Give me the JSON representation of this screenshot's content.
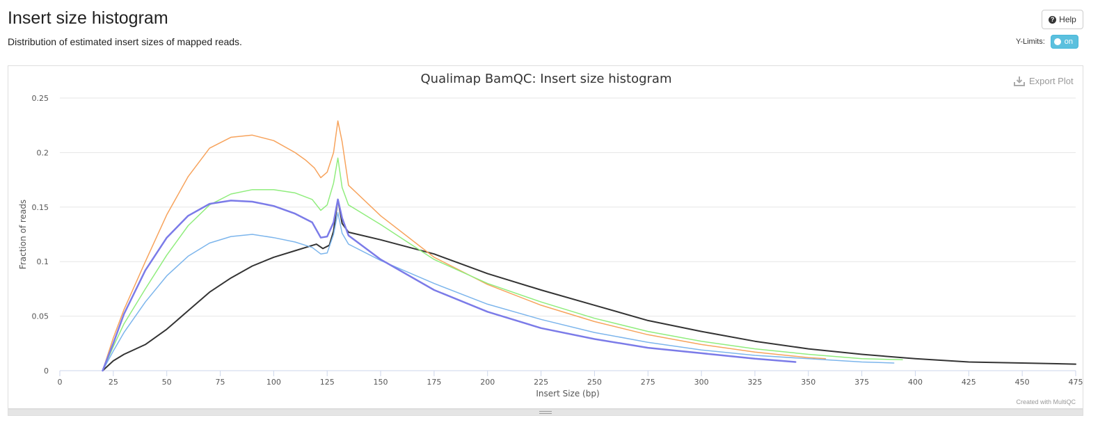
{
  "header": {
    "title": "Insert size histogram",
    "description": "Distribution of estimated insert sizes of mapped reads.",
    "help_label": "Help",
    "ylimits_label": "Y-Limits:",
    "ylimits_toggle": "on",
    "toggle_color": "#5bc0de"
  },
  "plot": {
    "export_label": "Export Plot",
    "credit": "Created with MultiQC"
  },
  "chart_data": {
    "type": "line",
    "title": "Qualimap BamQC: Insert size histogram",
    "xlabel": "Insert Size (bp)",
    "ylabel": "Fraction of reads",
    "xlim": [
      0,
      475
    ],
    "ylim": [
      0,
      0.25
    ],
    "xticks": [
      "0",
      "25",
      "50",
      "75",
      "100",
      "125",
      "150",
      "175",
      "200",
      "225",
      "250",
      "275",
      "300",
      "325",
      "350",
      "375",
      "400",
      "425",
      "450",
      "475"
    ],
    "yticks": [
      "0",
      "0.05",
      "0.1",
      "0.15",
      "0.2",
      "0.25"
    ],
    "grid": true,
    "series": [
      {
        "color": "#333333",
        "width": 2,
        "points": [
          [
            20,
            0
          ],
          [
            25,
            0.009
          ],
          [
            30,
            0.015
          ],
          [
            40,
            0.024
          ],
          [
            50,
            0.038
          ],
          [
            60,
            0.055
          ],
          [
            70,
            0.072
          ],
          [
            80,
            0.085
          ],
          [
            90,
            0.096
          ],
          [
            100,
            0.104
          ],
          [
            110,
            0.11
          ],
          [
            120,
            0.116
          ],
          [
            123,
            0.112
          ],
          [
            126,
            0.115
          ],
          [
            128,
            0.128
          ],
          [
            130,
            0.157
          ],
          [
            132,
            0.135
          ],
          [
            135,
            0.127
          ],
          [
            150,
            0.12
          ],
          [
            175,
            0.107
          ],
          [
            200,
            0.089
          ],
          [
            225,
            0.074
          ],
          [
            250,
            0.06
          ],
          [
            275,
            0.046
          ],
          [
            300,
            0.036
          ],
          [
            325,
            0.027
          ],
          [
            350,
            0.02
          ],
          [
            375,
            0.015
          ],
          [
            400,
            0.011
          ],
          [
            425,
            0.008
          ],
          [
            450,
            0.007
          ],
          [
            475,
            0.006
          ]
        ]
      },
      {
        "color": "#f7a35c",
        "width": 1.5,
        "points": [
          [
            20,
            0
          ],
          [
            25,
            0.03
          ],
          [
            30,
            0.056
          ],
          [
            40,
            0.1
          ],
          [
            50,
            0.143
          ],
          [
            60,
            0.178
          ],
          [
            70,
            0.204
          ],
          [
            80,
            0.214
          ],
          [
            90,
            0.216
          ],
          [
            100,
            0.211
          ],
          [
            110,
            0.2
          ],
          [
            115,
            0.193
          ],
          [
            119,
            0.186
          ],
          [
            122,
            0.177
          ],
          [
            125,
            0.182
          ],
          [
            128,
            0.2
          ],
          [
            130,
            0.229
          ],
          [
            132,
            0.21
          ],
          [
            135,
            0.17
          ],
          [
            150,
            0.142
          ],
          [
            175,
            0.104
          ],
          [
            200,
            0.079
          ],
          [
            225,
            0.06
          ],
          [
            250,
            0.045
          ],
          [
            275,
            0.033
          ],
          [
            300,
            0.024
          ],
          [
            325,
            0.017
          ],
          [
            350,
            0.012
          ],
          [
            358,
            0.011
          ]
        ]
      },
      {
        "color": "#90ed7d",
        "width": 1.5,
        "points": [
          [
            20,
            0
          ],
          [
            25,
            0.022
          ],
          [
            30,
            0.043
          ],
          [
            40,
            0.075
          ],
          [
            50,
            0.106
          ],
          [
            60,
            0.133
          ],
          [
            70,
            0.152
          ],
          [
            80,
            0.162
          ],
          [
            90,
            0.166
          ],
          [
            100,
            0.166
          ],
          [
            110,
            0.163
          ],
          [
            118,
            0.157
          ],
          [
            122,
            0.147
          ],
          [
            125,
            0.152
          ],
          [
            128,
            0.172
          ],
          [
            130,
            0.195
          ],
          [
            132,
            0.168
          ],
          [
            135,
            0.152
          ],
          [
            150,
            0.134
          ],
          [
            175,
            0.102
          ],
          [
            200,
            0.08
          ],
          [
            225,
            0.063
          ],
          [
            250,
            0.048
          ],
          [
            275,
            0.036
          ],
          [
            300,
            0.027
          ],
          [
            325,
            0.02
          ],
          [
            350,
            0.015
          ],
          [
            375,
            0.011
          ],
          [
            394,
            0.01
          ]
        ]
      },
      {
        "color": "#7cb5ec",
        "width": 1.5,
        "points": [
          [
            20,
            0
          ],
          [
            25,
            0.018
          ],
          [
            30,
            0.035
          ],
          [
            40,
            0.063
          ],
          [
            50,
            0.087
          ],
          [
            60,
            0.105
          ],
          [
            70,
            0.117
          ],
          [
            80,
            0.123
          ],
          [
            90,
            0.125
          ],
          [
            100,
            0.122
          ],
          [
            110,
            0.118
          ],
          [
            118,
            0.113
          ],
          [
            122,
            0.107
          ],
          [
            125,
            0.108
          ],
          [
            128,
            0.125
          ],
          [
            130,
            0.145
          ],
          [
            132,
            0.126
          ],
          [
            135,
            0.116
          ],
          [
            150,
            0.101
          ],
          [
            175,
            0.08
          ],
          [
            200,
            0.061
          ],
          [
            225,
            0.047
          ],
          [
            250,
            0.035
          ],
          [
            275,
            0.026
          ],
          [
            300,
            0.019
          ],
          [
            325,
            0.014
          ],
          [
            350,
            0.011
          ],
          [
            375,
            0.008
          ],
          [
            390,
            0.007
          ]
        ]
      },
      {
        "color": "#7b7be8",
        "width": 2.5,
        "points": [
          [
            20,
            0
          ],
          [
            25,
            0.025
          ],
          [
            30,
            0.052
          ],
          [
            40,
            0.092
          ],
          [
            50,
            0.122
          ],
          [
            60,
            0.142
          ],
          [
            70,
            0.153
          ],
          [
            80,
            0.156
          ],
          [
            90,
            0.155
          ],
          [
            100,
            0.151
          ],
          [
            110,
            0.144
          ],
          [
            118,
            0.136
          ],
          [
            122,
            0.122
          ],
          [
            125,
            0.123
          ],
          [
            128,
            0.136
          ],
          [
            130,
            0.157
          ],
          [
            132,
            0.14
          ],
          [
            135,
            0.124
          ],
          [
            150,
            0.102
          ],
          [
            175,
            0.074
          ],
          [
            200,
            0.054
          ],
          [
            225,
            0.039
          ],
          [
            250,
            0.029
          ],
          [
            275,
            0.021
          ],
          [
            300,
            0.016
          ],
          [
            325,
            0.011
          ],
          [
            344,
            0.008
          ]
        ]
      }
    ]
  }
}
